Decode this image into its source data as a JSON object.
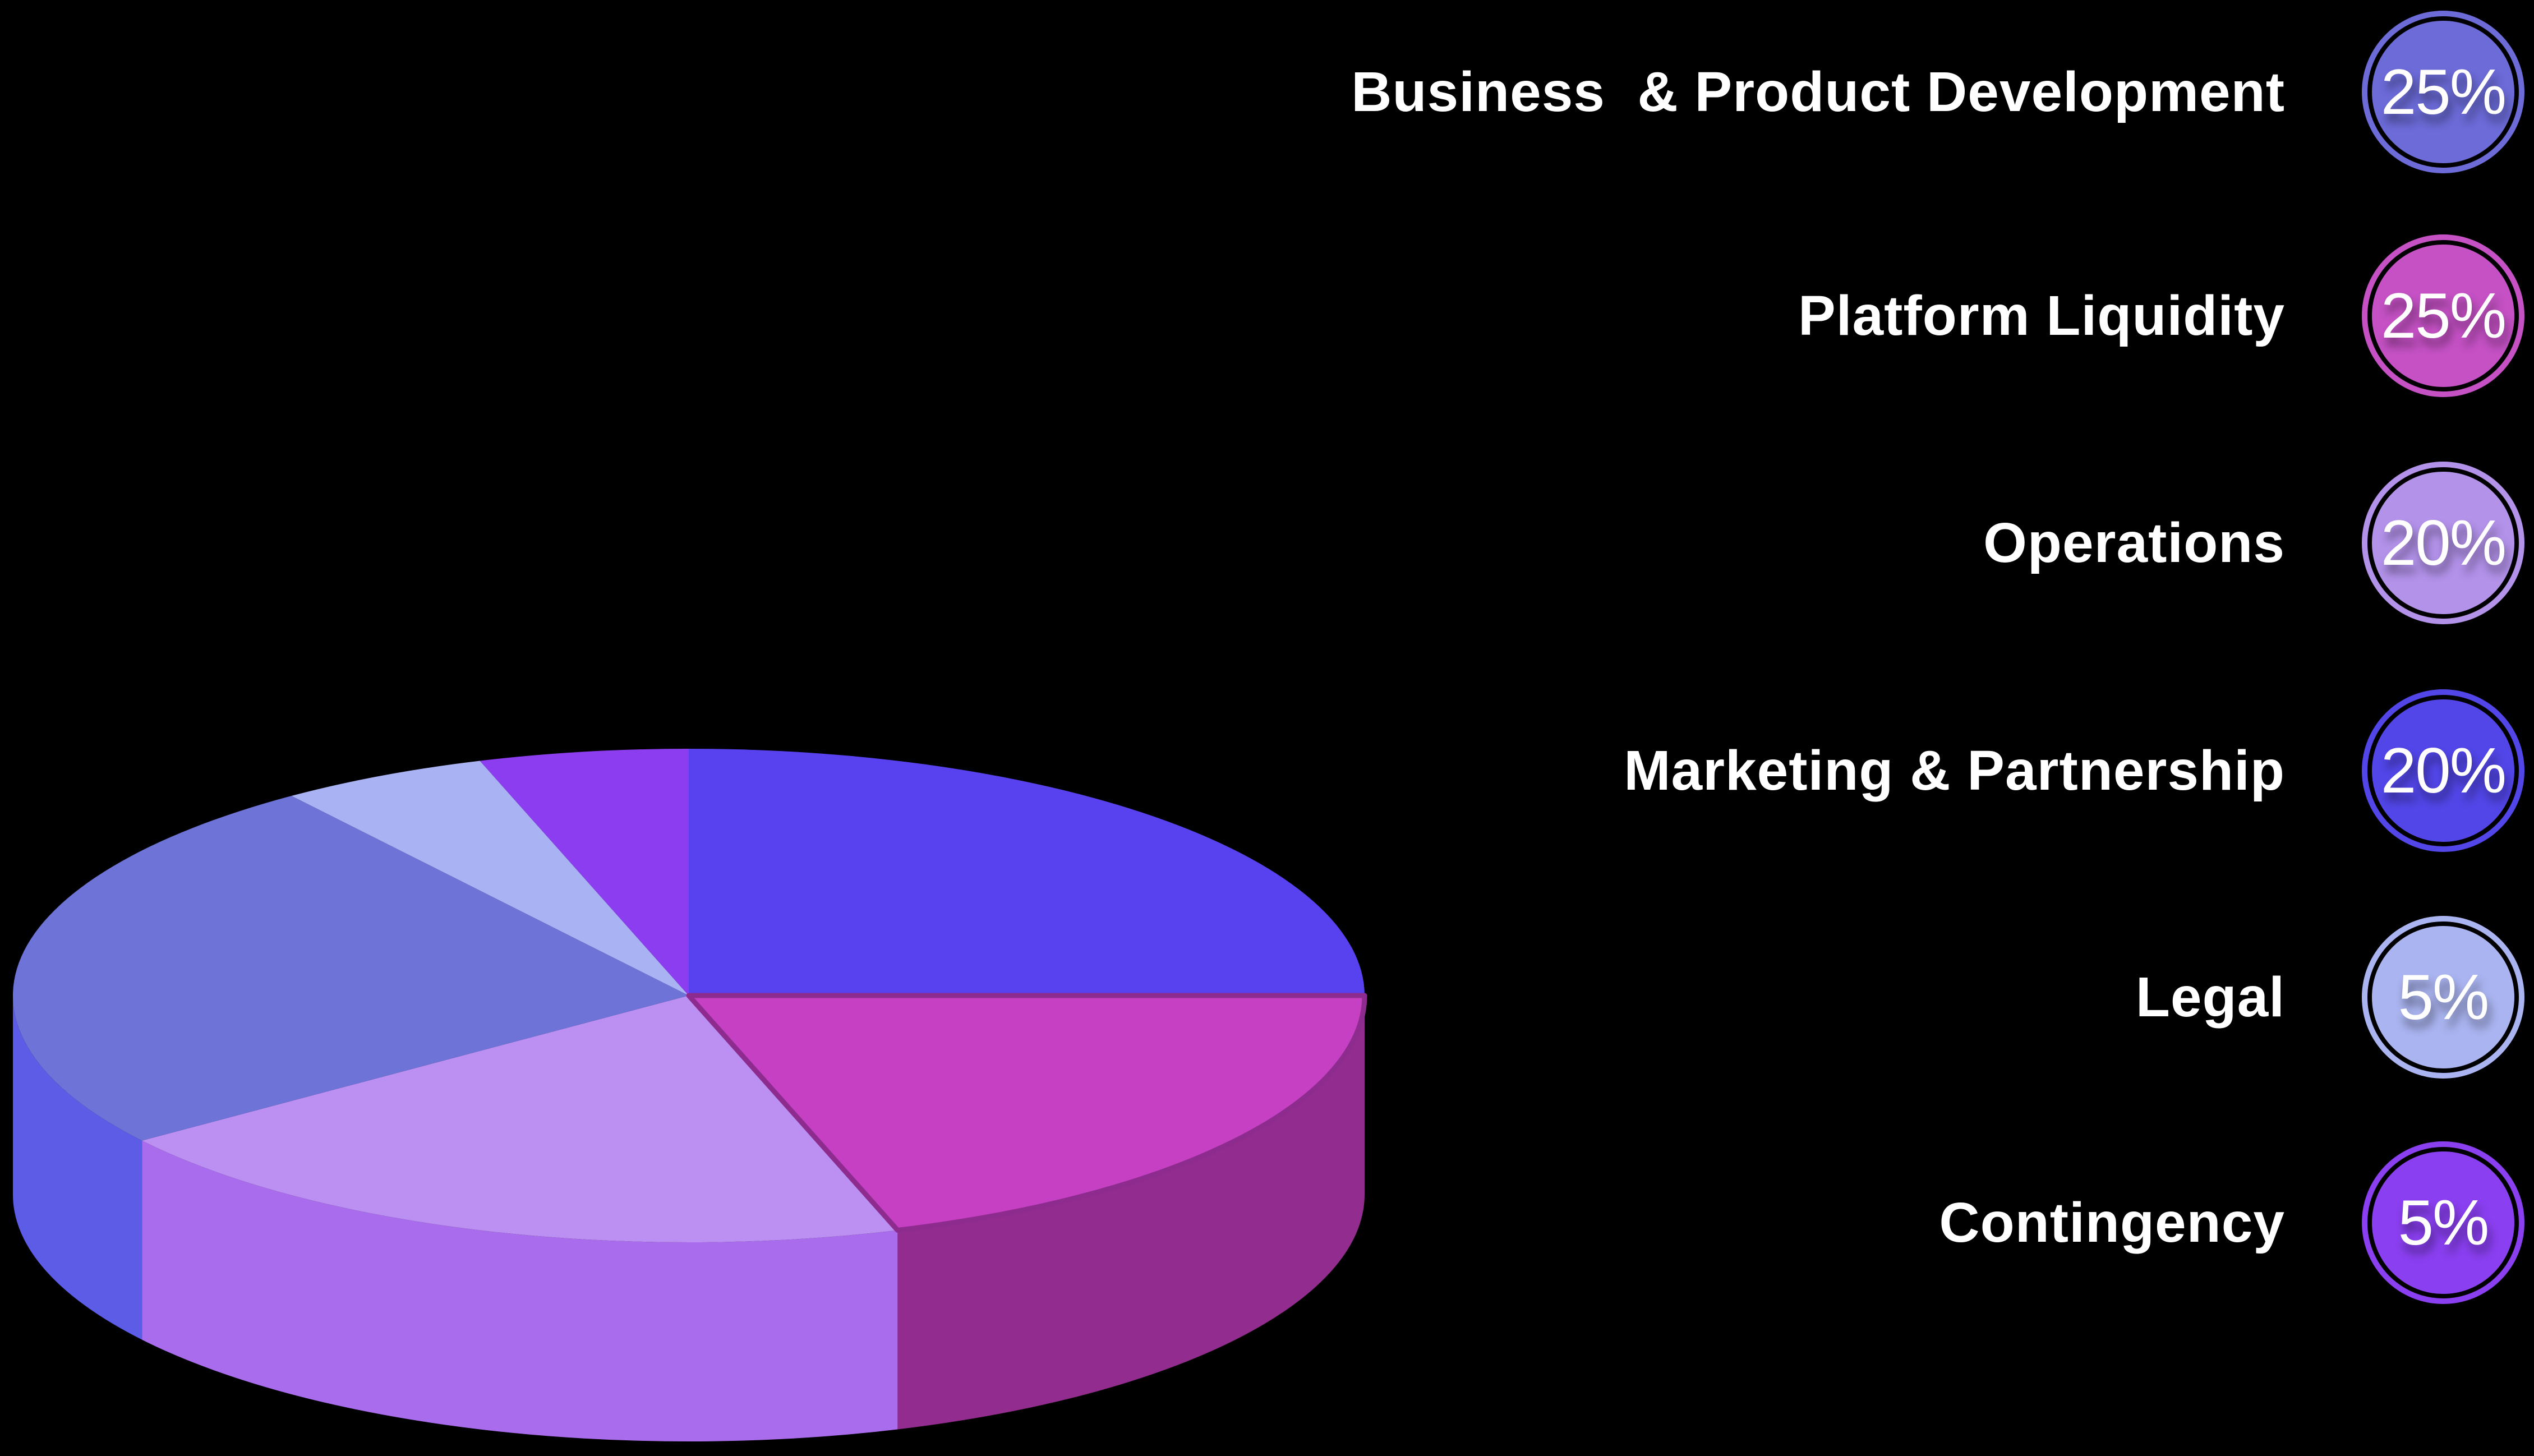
{
  "page": {
    "background_color": "#000000"
  },
  "chart_data": {
    "type": "pie",
    "style": "3d-cylinder",
    "title": "",
    "legend_position": "right",
    "direction": "clockwise",
    "start_angle_deg": 0,
    "labels": [
      "Business  & Product Development",
      "Platform Liquidity",
      "Operations",
      "Marketing & Partnership",
      "Legal",
      "Contingency"
    ],
    "values": [
      25,
      25,
      20,
      20,
      5,
      5
    ],
    "legend": [
      {
        "label": "Business  & Product Development",
        "value": 25,
        "badge_text": "25%",
        "badge_color": "#6C6BD8"
      },
      {
        "label": "Platform Liquidity",
        "value": 25,
        "badge_text": "25%",
        "badge_color": "#C551C5"
      },
      {
        "label": "Operations",
        "value": 20,
        "badge_text": "20%",
        "badge_color": "#B392EA"
      },
      {
        "label": "Marketing & Partnership",
        "value": 20,
        "badge_text": "20%",
        "badge_color": "#5246E8"
      },
      {
        "label": "Legal",
        "value": 5,
        "badge_text": "5%",
        "badge_color": "#AAB4F0"
      },
      {
        "label": "Contingency",
        "value": 5,
        "badge_text": "5%",
        "badge_color": "#8A3FF0"
      }
    ],
    "rendered_slices_clockwise_from_12": [
      {
        "percent": 25,
        "top_color": "#5842F0"
      },
      {
        "percent": 20,
        "top_color": "#C640C4",
        "wall_color": "#932C8F",
        "edge_stroke": "#8D2B8E"
      },
      {
        "percent": 20,
        "top_color": "#BC90F2",
        "wall_color": "#A96CEC"
      },
      {
        "percent": 25,
        "top_color": "#6E73D8",
        "wall_color": "#5C5CE6"
      },
      {
        "percent": 5,
        "top_color": "#A9B2F2"
      },
      {
        "percent": 5,
        "top_color": "#8C3DF0"
      }
    ]
  }
}
